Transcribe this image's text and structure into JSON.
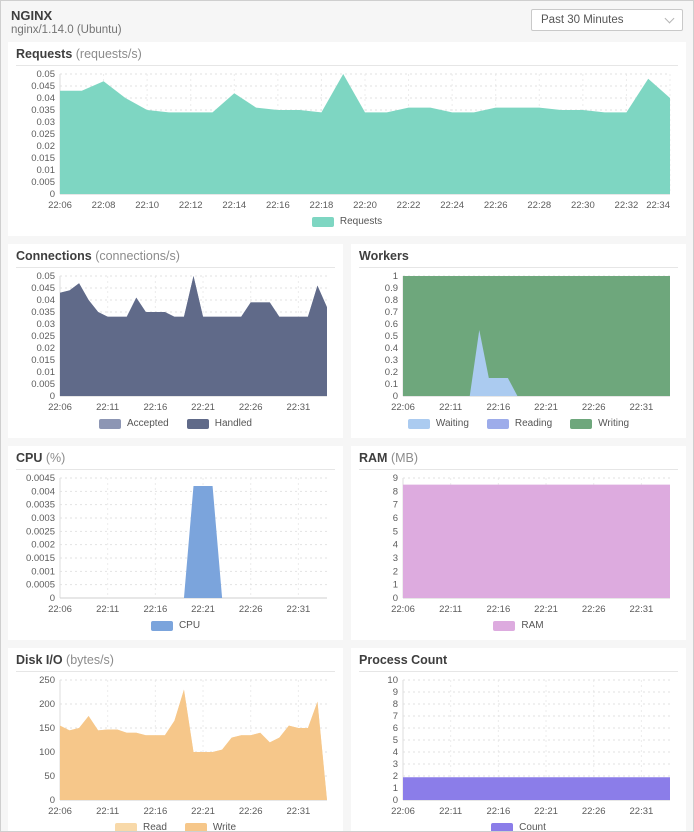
{
  "header": {
    "title": "NGINX",
    "subtitle": "nginx/1.14.0 (Ubuntu)",
    "time_range": {
      "value": "Past 30 Minutes"
    }
  },
  "chart_data": [
    {
      "type": "area",
      "key": "requests",
      "title": "Requests",
      "unit": "(requests/s)",
      "x": [
        "22:06",
        "22:07",
        "22:08",
        "22:09",
        "22:10",
        "22:11",
        "22:12",
        "22:13",
        "22:14",
        "22:15",
        "22:16",
        "22:17",
        "22:18",
        "22:19",
        "22:20",
        "22:21",
        "22:22",
        "22:23",
        "22:24",
        "22:25",
        "22:26",
        "22:27",
        "22:28",
        "22:29",
        "22:30",
        "22:31",
        "22:32",
        "22:33",
        "22:34"
      ],
      "x_tick_every": 2,
      "ylim": [
        0,
        0.05
      ],
      "yticks": [
        "0",
        "0.005",
        "0.01",
        "0.015",
        "0.02",
        "0.025",
        "0.03",
        "0.035",
        "0.04",
        "0.045",
        "0.05"
      ],
      "series": [
        {
          "name": "Requests",
          "color": "#7ed6c2",
          "values": [
            0.043,
            0.043,
            0.047,
            0.04,
            0.035,
            0.034,
            0.034,
            0.034,
            0.042,
            0.036,
            0.035,
            0.035,
            0.034,
            0.05,
            0.034,
            0.034,
            0.036,
            0.036,
            0.034,
            0.034,
            0.036,
            0.036,
            0.036,
            0.035,
            0.035,
            0.034,
            0.034,
            0.048,
            0.04
          ]
        }
      ],
      "legend": [
        {
          "label": "Requests",
          "color": "#7ed6c2"
        }
      ]
    },
    {
      "type": "area",
      "key": "connections",
      "title": "Connections",
      "unit": "(connections/s)",
      "x": [
        "22:06",
        "22:07",
        "22:08",
        "22:09",
        "22:10",
        "22:11",
        "22:12",
        "22:13",
        "22:14",
        "22:15",
        "22:16",
        "22:17",
        "22:18",
        "22:19",
        "22:20",
        "22:21",
        "22:22",
        "22:23",
        "22:24",
        "22:25",
        "22:26",
        "22:27",
        "22:28",
        "22:29",
        "22:30",
        "22:31",
        "22:32",
        "22:33",
        "22:34"
      ],
      "x_tick_every": 5,
      "ylim": [
        0,
        0.05
      ],
      "yticks": [
        "0",
        "0.005",
        "0.01",
        "0.015",
        "0.02",
        "0.025",
        "0.03",
        "0.035",
        "0.04",
        "0.045",
        "0.05"
      ],
      "series": [
        {
          "name": "Accepted",
          "color": "#8d96b4",
          "values": [
            0.043,
            0.044,
            0.047,
            0.04,
            0.035,
            0.033,
            0.033,
            0.033,
            0.041,
            0.035,
            0.035,
            0.035,
            0.033,
            0.033,
            0.05,
            0.033,
            0.033,
            0.033,
            0.033,
            0.033,
            0.039,
            0.039,
            0.039,
            0.033,
            0.033,
            0.033,
            0.033,
            0.046,
            0.037
          ]
        },
        {
          "name": "Handled",
          "color": "#606a89",
          "values": [
            0.043,
            0.044,
            0.047,
            0.04,
            0.035,
            0.033,
            0.033,
            0.033,
            0.041,
            0.035,
            0.035,
            0.035,
            0.033,
            0.033,
            0.05,
            0.033,
            0.033,
            0.033,
            0.033,
            0.033,
            0.039,
            0.039,
            0.039,
            0.033,
            0.033,
            0.033,
            0.033,
            0.046,
            0.037
          ]
        }
      ],
      "legend": [
        {
          "label": "Accepted",
          "color": "#8d96b4"
        },
        {
          "label": "Handled",
          "color": "#606a89"
        }
      ]
    },
    {
      "type": "area",
      "key": "workers",
      "title": "Workers",
      "unit": "",
      "x": [
        "22:06",
        "22:07",
        "22:08",
        "22:09",
        "22:10",
        "22:11",
        "22:12",
        "22:13",
        "22:14",
        "22:15",
        "22:16",
        "22:17",
        "22:18",
        "22:19",
        "22:20",
        "22:21",
        "22:22",
        "22:23",
        "22:24",
        "22:25",
        "22:26",
        "22:27",
        "22:28",
        "22:29",
        "22:30",
        "22:31",
        "22:32",
        "22:33",
        "22:34"
      ],
      "x_tick_every": 5,
      "ylim": [
        0,
        1
      ],
      "yticks": [
        "0",
        "0.1",
        "0.2",
        "0.3",
        "0.4",
        "0.5",
        "0.6",
        "0.7",
        "0.8",
        "0.9",
        "1"
      ],
      "series": [
        {
          "name": "Writing",
          "color": "#6ea77c",
          "values": [
            1,
            1,
            1,
            1,
            1,
            1,
            1,
            1,
            1,
            1,
            1,
            1,
            1,
            1,
            1,
            1,
            1,
            1,
            1,
            1,
            1,
            1,
            1,
            1,
            1,
            1,
            1,
            1,
            1
          ]
        },
        {
          "name": "Reading",
          "color": "#9dacea",
          "values": [
            0,
            0,
            0,
            0,
            0,
            0,
            0,
            0,
            0,
            0,
            0,
            0,
            0,
            0,
            0,
            0,
            0,
            0,
            0,
            0,
            0,
            0,
            0,
            0,
            0,
            0,
            0,
            0,
            0
          ]
        },
        {
          "name": "Waiting",
          "color": "#abcbf0",
          "values": [
            0,
            0,
            0,
            0,
            0,
            0,
            0,
            0,
            0.55,
            0.15,
            0.15,
            0.15,
            0,
            0,
            0,
            0,
            0,
            0,
            0,
            0,
            0,
            0,
            0,
            0,
            0,
            0,
            0,
            0,
            0
          ]
        }
      ],
      "legend": [
        {
          "label": "Waiting",
          "color": "#abcbf0"
        },
        {
          "label": "Reading",
          "color": "#9dacea"
        },
        {
          "label": "Writing",
          "color": "#6ea77c"
        }
      ]
    },
    {
      "type": "area",
      "key": "cpu",
      "title": "CPU",
      "unit": "(%)",
      "x": [
        "22:06",
        "22:07",
        "22:08",
        "22:09",
        "22:10",
        "22:11",
        "22:12",
        "22:13",
        "22:14",
        "22:15",
        "22:16",
        "22:17",
        "22:18",
        "22:19",
        "22:20",
        "22:21",
        "22:22",
        "22:23",
        "22:24",
        "22:25",
        "22:26",
        "22:27",
        "22:28",
        "22:29",
        "22:30",
        "22:31",
        "22:32",
        "22:33",
        "22:34"
      ],
      "x_tick_every": 5,
      "ylim": [
        0,
        0.0045
      ],
      "yticks": [
        "0",
        "0.0005",
        "0.001",
        "0.0015",
        "0.002",
        "0.0025",
        "0.003",
        "0.0035",
        "0.004",
        "0.0045"
      ],
      "series": [
        {
          "name": "CPU",
          "color": "#7ba4dc",
          "values": [
            0,
            0,
            0,
            0,
            0,
            0,
            0,
            0,
            0,
            0,
            0,
            0,
            0,
            0,
            0.0042,
            0.0042,
            0.0042,
            0,
            0,
            0,
            0,
            0,
            0,
            0,
            0,
            0,
            0,
            0,
            0
          ]
        }
      ],
      "legend": [
        {
          "label": "CPU",
          "color": "#7ba4dc"
        }
      ]
    },
    {
      "type": "area",
      "key": "ram",
      "title": "RAM",
      "unit": "(MB)",
      "x": [
        "22:06",
        "22:07",
        "22:08",
        "22:09",
        "22:10",
        "22:11",
        "22:12",
        "22:13",
        "22:14",
        "22:15",
        "22:16",
        "22:17",
        "22:18",
        "22:19",
        "22:20",
        "22:21",
        "22:22",
        "22:23",
        "22:24",
        "22:25",
        "22:26",
        "22:27",
        "22:28",
        "22:29",
        "22:30",
        "22:31",
        "22:32",
        "22:33",
        "22:34"
      ],
      "x_tick_every": 5,
      "ylim": [
        0,
        9
      ],
      "yticks": [
        "0",
        "1",
        "2",
        "3",
        "4",
        "5",
        "6",
        "7",
        "8",
        "9"
      ],
      "series": [
        {
          "name": "RAM",
          "color": "#ddabdf",
          "values": [
            8.5,
            8.5,
            8.5,
            8.5,
            8.5,
            8.5,
            8.5,
            8.5,
            8.5,
            8.5,
            8.5,
            8.5,
            8.5,
            8.5,
            8.5,
            8.5,
            8.5,
            8.5,
            8.5,
            8.5,
            8.5,
            8.5,
            8.5,
            8.5,
            8.5,
            8.5,
            8.5,
            8.5,
            8.5
          ]
        }
      ],
      "legend": [
        {
          "label": "RAM",
          "color": "#ddabdf"
        }
      ]
    },
    {
      "type": "area",
      "key": "disk-io",
      "title": "Disk I/O",
      "unit": "(bytes/s)",
      "x": [
        "22:06",
        "22:07",
        "22:08",
        "22:09",
        "22:10",
        "22:11",
        "22:12",
        "22:13",
        "22:14",
        "22:15",
        "22:16",
        "22:17",
        "22:18",
        "22:19",
        "22:20",
        "22:21",
        "22:22",
        "22:23",
        "22:24",
        "22:25",
        "22:26",
        "22:27",
        "22:28",
        "22:29",
        "22:30",
        "22:31",
        "22:32",
        "22:33",
        "22:34"
      ],
      "x_tick_every": 5,
      "ylim": [
        0,
        250
      ],
      "yticks": [
        "0",
        "50",
        "100",
        "150",
        "200",
        "250"
      ],
      "series": [
        {
          "name": "Read",
          "color": "#f8d9a9",
          "values": [
            155,
            145,
            150,
            175,
            145,
            147,
            147,
            140,
            140,
            135,
            135,
            135,
            165,
            230,
            100,
            100,
            100,
            105,
            130,
            135,
            135,
            140,
            120,
            130,
            155,
            150,
            150,
            205,
            0
          ]
        },
        {
          "name": "Write",
          "color": "#f6c78a",
          "values": [
            155,
            145,
            150,
            175,
            145,
            147,
            147,
            140,
            140,
            135,
            135,
            135,
            165,
            230,
            100,
            100,
            100,
            105,
            130,
            135,
            135,
            140,
            120,
            130,
            155,
            150,
            150,
            205,
            0
          ]
        }
      ],
      "legend": [
        {
          "label": "Read",
          "color": "#f8d9a9"
        },
        {
          "label": "Write",
          "color": "#f6c78a"
        }
      ]
    },
    {
      "type": "area",
      "key": "process-count",
      "title": "Process Count",
      "unit": "",
      "x": [
        "22:06",
        "22:07",
        "22:08",
        "22:09",
        "22:10",
        "22:11",
        "22:12",
        "22:13",
        "22:14",
        "22:15",
        "22:16",
        "22:17",
        "22:18",
        "22:19",
        "22:20",
        "22:21",
        "22:22",
        "22:23",
        "22:24",
        "22:25",
        "22:26",
        "22:27",
        "22:28",
        "22:29",
        "22:30",
        "22:31",
        "22:32",
        "22:33",
        "22:34"
      ],
      "x_tick_every": 5,
      "ylim": [
        0,
        10
      ],
      "yticks": [
        "0",
        "1",
        "2",
        "3",
        "4",
        "5",
        "6",
        "7",
        "8",
        "9",
        "10"
      ],
      "series": [
        {
          "name": "Count",
          "color": "#8b7de9",
          "values": [
            1.9,
            1.9,
            1.9,
            1.9,
            1.9,
            1.9,
            1.9,
            1.9,
            1.9,
            1.9,
            1.9,
            1.9,
            1.9,
            1.9,
            1.9,
            1.9,
            1.9,
            1.9,
            1.9,
            1.9,
            1.9,
            1.9,
            1.9,
            1.9,
            1.9,
            1.9,
            1.9,
            1.9,
            1.9
          ]
        }
      ],
      "legend": [
        {
          "label": "Count",
          "color": "#8b7de9"
        }
      ]
    }
  ]
}
